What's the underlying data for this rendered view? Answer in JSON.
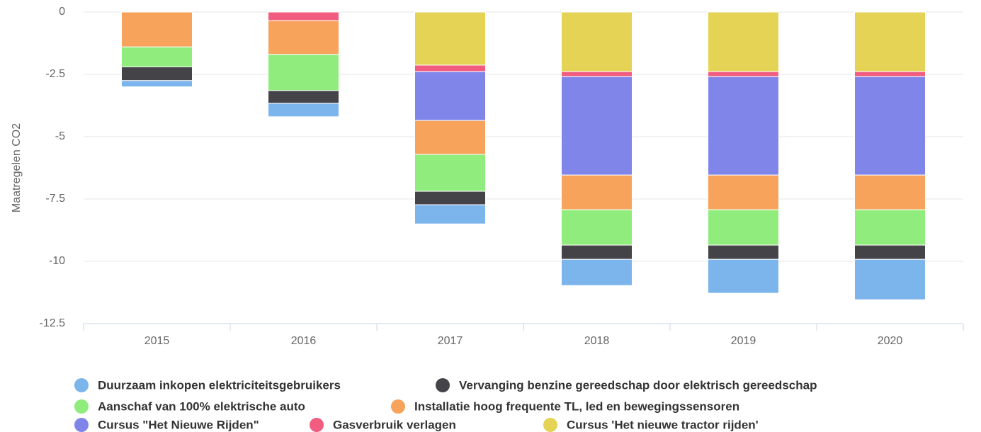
{
  "chart_data": {
    "type": "stacked_bar",
    "y_label": "Maatregelen CO2",
    "categories": [
      "2015",
      "2016",
      "2017",
      "2018",
      "2019",
      "2020"
    ],
    "ylim": [
      -12.5,
      0
    ],
    "yticks": [
      0,
      -2.5,
      -5,
      -7.5,
      -10,
      -12.5
    ],
    "grid": true,
    "series": [
      {
        "name": "Duurzaam inkopen elektriciteitsgebruikers",
        "color": "#7cb5ec",
        "values": [
          -0.25,
          -0.54,
          -0.77,
          -1.05,
          -1.36,
          -1.62
        ]
      },
      {
        "name": "Vervanging benzine gereedschap door elektrisch gereedschap",
        "color": "#434348",
        "values": [
          -0.55,
          -0.51,
          -0.54,
          -0.57,
          -0.57,
          -0.57
        ]
      },
      {
        "name": "Aanschaf van 100% elektrische auto",
        "color": "#90ed7d",
        "values": [
          -0.8,
          -1.45,
          -1.48,
          -1.42,
          -1.42,
          -1.42
        ]
      },
      {
        "name": "Installatie hoog frequente TL, led en bewegingssensoren",
        "color": "#f7a35c",
        "values": [
          -1.4,
          -1.36,
          -1.36,
          -1.39,
          -1.39,
          -1.39
        ]
      },
      {
        "name": "Cursus \"Het Nieuwe Rijden\"",
        "color": "#8085e9",
        "values": [
          0,
          0,
          -1.96,
          -3.95,
          -3.95,
          -3.95
        ]
      },
      {
        "name": "Gasverbruik verlagen",
        "color": "#f15c80",
        "values": [
          0,
          -0.34,
          -0.26,
          -0.2,
          -0.2,
          -0.2
        ]
      },
      {
        "name": "Cursus 'Het nieuwe tractor rijden'",
        "color": "#e4d354",
        "values": [
          0,
          0,
          -2.13,
          -2.39,
          -2.39,
          -2.39
        ]
      }
    ]
  }
}
